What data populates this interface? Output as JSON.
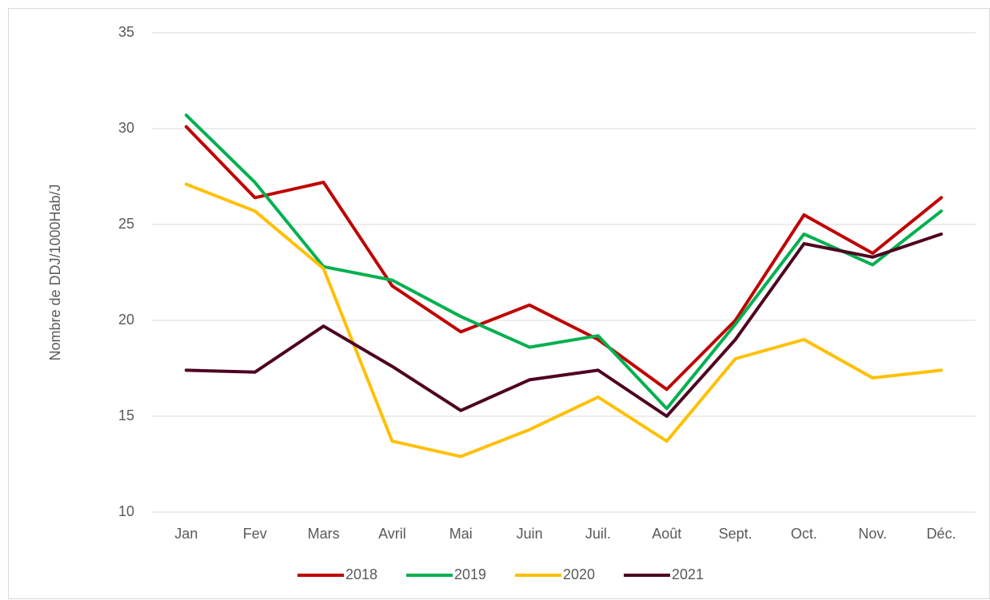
{
  "chart_data": {
    "type": "line",
    "y_label": "Nombre de DDJ/1000Hab/J",
    "categories": [
      "Jan",
      "Fev",
      "Mars",
      "Avril",
      "Mai",
      "Juin",
      "Juil.",
      "Août",
      "Sept.",
      "Oct.",
      "Nov.",
      "Déc."
    ],
    "series": [
      {
        "name": "2018",
        "color": "#c00000",
        "values": [
          30.1,
          26.4,
          27.2,
          21.8,
          19.4,
          20.8,
          19.0,
          16.4,
          20.0,
          25.5,
          23.5,
          26.4
        ]
      },
      {
        "name": "2019",
        "color": "#00b050",
        "values": [
          30.7,
          27.2,
          22.8,
          22.1,
          20.2,
          18.6,
          19.2,
          15.4,
          19.8,
          24.5,
          22.9,
          25.7
        ]
      },
      {
        "name": "2020",
        "color": "#ffc000",
        "values": [
          27.1,
          25.7,
          22.7,
          13.7,
          12.9,
          14.3,
          16.0,
          13.7,
          18.0,
          19.0,
          17.0,
          17.4
        ]
      },
      {
        "name": "2021",
        "color": "#4e0020",
        "values": [
          17.4,
          17.3,
          19.7,
          17.6,
          15.3,
          16.9,
          17.4,
          15.0,
          19.0,
          24.0,
          23.3,
          24.5
        ]
      }
    ],
    "ylim": [
      10,
      35
    ],
    "yticks": [
      10,
      15,
      20,
      25,
      30,
      35
    ],
    "grid": true,
    "legend": "bottom"
  }
}
